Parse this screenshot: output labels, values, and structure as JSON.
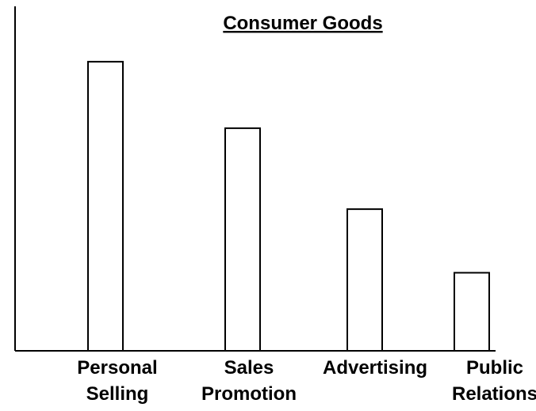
{
  "chart_data": {
    "type": "bar",
    "title": "Consumer Goods",
    "categories": [
      [
        "Personal",
        "Selling"
      ],
      [
        "Sales",
        "Promotion"
      ],
      [
        "Advertising"
      ],
      [
        "Public",
        "Relations"
      ]
    ],
    "values": [
      100,
      77,
      49,
      27
    ],
    "ylim": [
      0,
      106
    ],
    "xlabel": "",
    "ylabel": "",
    "grid": false,
    "legend": "none",
    "colors": {
      "bar_fill": "#ffffff",
      "bar_stroke": "#000000",
      "axis": "#000000",
      "text": "#000000"
    }
  }
}
